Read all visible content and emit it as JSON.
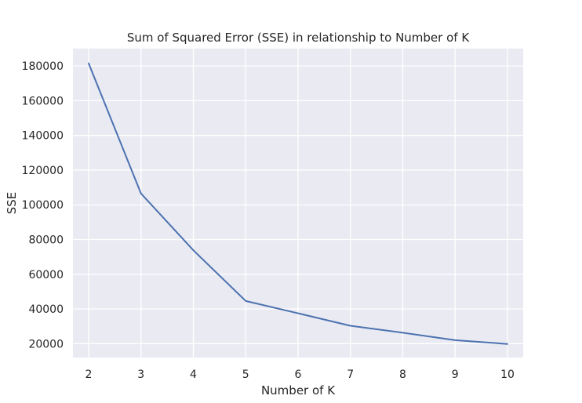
{
  "chart_data": {
    "type": "line",
    "title": "Sum of Squared Error (SSE) in relationship to Number of K",
    "xlabel": "Number of K",
    "ylabel": "SSE",
    "x": [
      2,
      3,
      4,
      5,
      6,
      7,
      8,
      9,
      10
    ],
    "series": [
      {
        "values": [
          181500,
          106500,
          73800,
          44600,
          37500,
          30300,
          26300,
          22000,
          19800
        ]
      }
    ],
    "xlim": [
      1.7,
      10.3
    ],
    "ylim": [
      12000,
      190000
    ],
    "xticks": [
      "2",
      "3",
      "4",
      "5",
      "6",
      "7",
      "8",
      "9",
      "10"
    ],
    "yticks": [
      "20000",
      "40000",
      "60000",
      "80000",
      "100000",
      "120000",
      "140000",
      "160000",
      "180000"
    ],
    "grid": true,
    "line_color": "#4c72b0",
    "plot_background": "#eaeaf2",
    "grid_color": "#ffffff"
  }
}
